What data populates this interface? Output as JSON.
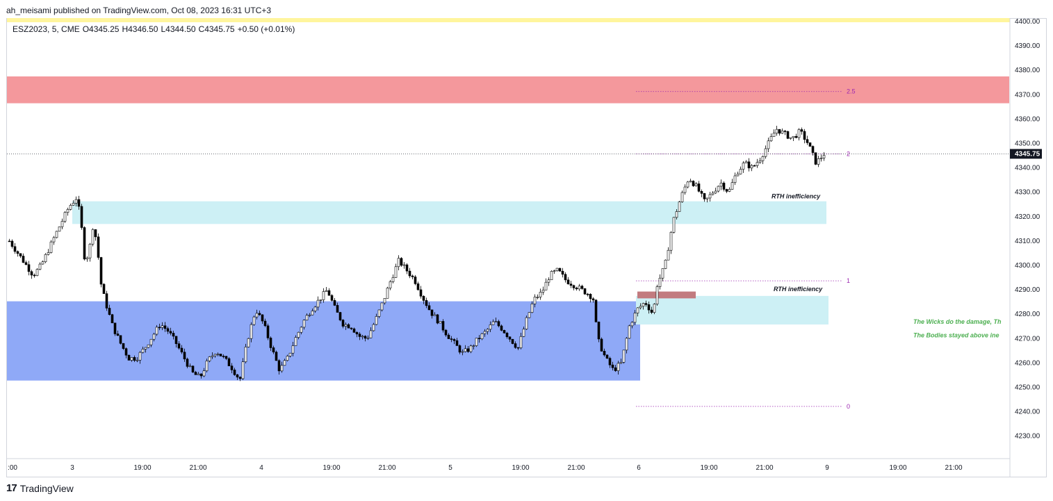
{
  "header": {
    "publisher": "ah_meisami published on TradingView.com, Oct 08, 2023 16:31 UTC+3"
  },
  "legend": {
    "symbol": "ESZ2023, 5, CME",
    "open": "O4345.25",
    "high": "H4346.50",
    "low": "L4344.50",
    "close": "C4345.75",
    "change": "+0.50 (+0.01%)"
  },
  "footer": {
    "logo_text": "TradingView",
    "logo_icon": "tradingview-logo-icon"
  },
  "colors": {
    "candle": "#000000",
    "red_zone": "#f4989c",
    "cyan_zone": "#cdf0f5",
    "blue_zone": "#8fa9f7",
    "yellow_band": "#fff59d",
    "small_red_box": "#c27b7f",
    "fib": "#9c27b0",
    "green_note": "#4caf50"
  },
  "chart_data": {
    "type": "candlestick",
    "symbol": "ESZ2023",
    "interval": "5",
    "ylim": [
      4222,
      4402
    ],
    "y_ticks": [
      "4400.00",
      "4390.00",
      "4380.00",
      "4370.00",
      "4360.00",
      "4350.00",
      "4340.00",
      "4330.00",
      "4320.00",
      "4310.00",
      "4300.00",
      "4290.00",
      "4280.00",
      "4270.00",
      "4260.00",
      "4250.00",
      "4240.00",
      "4230.00"
    ],
    "x_ticks": [
      ":00",
      "3",
      "19:00",
      "21:00",
      "4",
      "19:00",
      "21:00",
      "5",
      "19:00",
      "21:00",
      "6",
      "19:00",
      "21:00",
      "9",
      "19:00",
      "21:00"
    ],
    "last_price": "4345.75",
    "price_path": [
      [
        0,
        4310
      ],
      [
        3,
        4303
      ],
      [
        6,
        4296
      ],
      [
        8,
        4300
      ],
      [
        12,
        4314
      ],
      [
        15,
        4324
      ],
      [
        17,
        4328
      ],
      [
        18,
        4318
      ],
      [
        19,
        4302
      ],
      [
        20,
        4305
      ],
      [
        21,
        4316
      ],
      [
        22,
        4310
      ],
      [
        23,
        4293
      ],
      [
        24,
        4286
      ],
      [
        26,
        4275
      ],
      [
        28,
        4268
      ],
      [
        30,
        4262
      ],
      [
        32,
        4262
      ],
      [
        34,
        4266
      ],
      [
        36,
        4271
      ],
      [
        38,
        4276
      ],
      [
        40,
        4273
      ],
      [
        42,
        4268
      ],
      [
        44,
        4262
      ],
      [
        46,
        4256
      ],
      [
        48,
        4254
      ],
      [
        50,
        4261
      ],
      [
        52,
        4265
      ],
      [
        54,
        4262
      ],
      [
        56,
        4258
      ],
      [
        58,
        4253
      ],
      [
        60,
        4270
      ],
      [
        62,
        4282
      ],
      [
        64,
        4276
      ],
      [
        66,
        4266
      ],
      [
        68,
        4257
      ],
      [
        70,
        4262
      ],
      [
        72,
        4270
      ],
      [
        74,
        4277
      ],
      [
        76,
        4282
      ],
      [
        78,
        4286
      ],
      [
        80,
        4290
      ],
      [
        82,
        4282
      ],
      [
        84,
        4276
      ],
      [
        86,
        4275
      ],
      [
        88,
        4271
      ],
      [
        90,
        4270
      ],
      [
        92,
        4277
      ],
      [
        94,
        4285
      ],
      [
        96,
        4294
      ],
      [
        98,
        4302
      ],
      [
        100,
        4298
      ],
      [
        102,
        4294
      ],
      [
        104,
        4287
      ],
      [
        106,
        4281
      ],
      [
        108,
        4277
      ],
      [
        110,
        4272
      ],
      [
        112,
        4268
      ],
      [
        114,
        4264
      ],
      [
        116,
        4266
      ],
      [
        118,
        4270
      ],
      [
        120,
        4273
      ],
      [
        122,
        4277
      ],
      [
        124,
        4274
      ],
      [
        126,
        4270
      ],
      [
        128,
        4266
      ],
      [
        130,
        4277
      ],
      [
        132,
        4286
      ],
      [
        134,
        4289
      ],
      [
        136,
        4296
      ],
      [
        138,
        4298
      ],
      [
        140,
        4294
      ],
      [
        142,
        4292
      ],
      [
        144,
        4290
      ],
      [
        146,
        4288
      ],
      [
        147,
        4286
      ],
      [
        148,
        4270
      ],
      [
        150,
        4262
      ],
      [
        152,
        4257
      ],
      [
        154,
        4260
      ],
      [
        156,
        4275
      ],
      [
        158,
        4282
      ],
      [
        160,
        4285
      ],
      [
        162,
        4280
      ],
      [
        163,
        4292
      ],
      [
        165,
        4300
      ],
      [
        167,
        4318
      ],
      [
        169,
        4328
      ],
      [
        171,
        4336
      ],
      [
        173,
        4332
      ],
      [
        175,
        4326
      ],
      [
        177,
        4330
      ],
      [
        179,
        4334
      ],
      [
        181,
        4330
      ],
      [
        183,
        4338
      ],
      [
        185,
        4342
      ],
      [
        187,
        4340
      ],
      [
        189,
        4344
      ],
      [
        191,
        4350
      ],
      [
        193,
        4356
      ],
      [
        195,
        4354
      ],
      [
        197,
        4352
      ],
      [
        199,
        4355
      ],
      [
        201,
        4350
      ],
      [
        203,
        4342
      ],
      [
        205,
        4345.75
      ]
    ]
  },
  "zones": {
    "rth1": "RTH inefficiency",
    "rth2": "RTH inefficiency"
  },
  "notes": {
    "line1": "The Wicks do the damage, Th",
    "line2": "The Bodies stayed above ine"
  },
  "fib_levels": [
    "2.5",
    "2",
    "1",
    "0"
  ]
}
